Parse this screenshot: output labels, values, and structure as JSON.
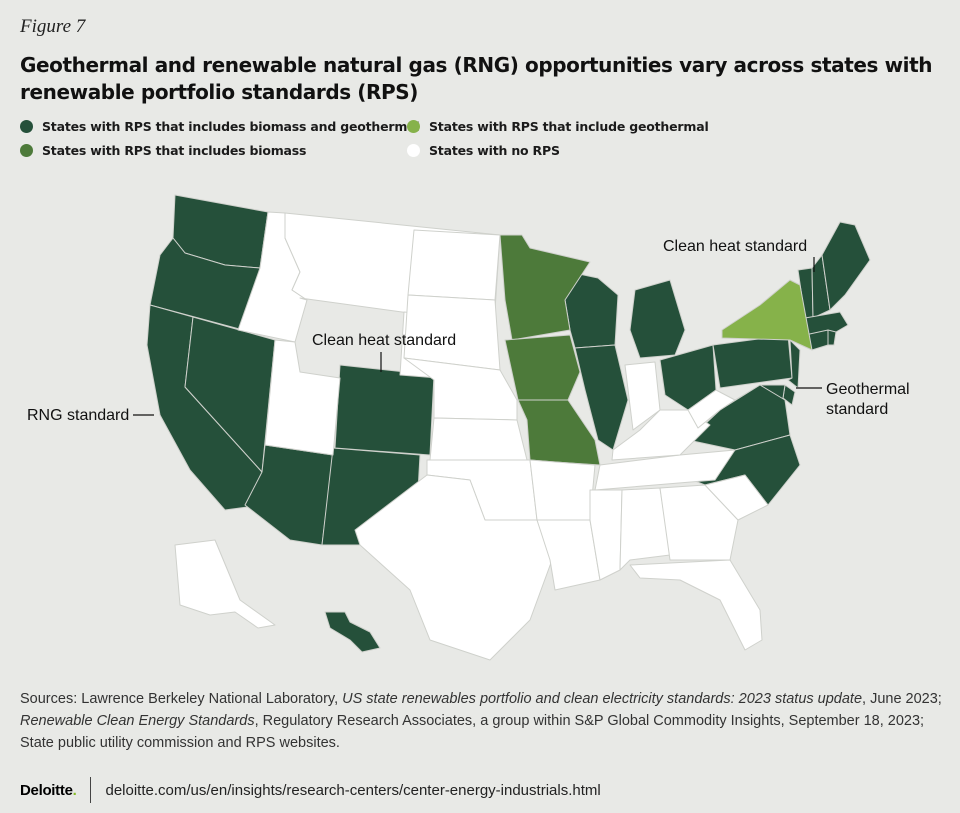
{
  "figure_label": "Figure 7",
  "title": "Geothermal and renewable natural gas (RNG) opportunities vary across states with renewable portfolio standards (RPS)",
  "colors": {
    "biomass_geothermal": "#25503a",
    "biomass": "#4d7a3a",
    "geothermal": "#86b24a",
    "no_rps": "#ffffff",
    "background": "#e8e9e6"
  },
  "legend": [
    {
      "key": "biomass_geothermal",
      "label": "States with RPS that includes biomass and geothermal"
    },
    {
      "key": "geothermal",
      "label": "States with RPS that include geothermal"
    },
    {
      "key": "biomass",
      "label": "States with RPS that includes biomass"
    },
    {
      "key": "no_rps",
      "label": "States with no RPS"
    }
  ],
  "map_data": {
    "type": "choropleth",
    "region": "United States",
    "categories": {
      "biomass_geothermal": [
        "WA",
        "OR",
        "CA",
        "NV",
        "AZ",
        "NM",
        "CO",
        "WI",
        "MI",
        "IL",
        "OH",
        "PA",
        "NJ",
        "DE",
        "MD",
        "VA",
        "NC",
        "VT",
        "NH",
        "ME",
        "MA",
        "RI",
        "CT",
        "HI"
      ],
      "biomass": [
        "MN",
        "IA",
        "MO"
      ],
      "geothermal": [
        "NY"
      ],
      "no_rps": [
        "ID",
        "MT",
        "WY",
        "UT",
        "ND",
        "SD",
        "NE",
        "KS",
        "OK",
        "TX",
        "AR",
        "LA",
        "MS",
        "AL",
        "GA",
        "FL",
        "SC",
        "TN",
        "KY",
        "WV",
        "IN",
        "AK"
      ]
    },
    "annotations": [
      {
        "state": "CA",
        "text": "RNG standard"
      },
      {
        "state": "CO",
        "text": "Clean heat standard"
      },
      {
        "state": "VT",
        "text": "Clean heat standard"
      },
      {
        "state": "MD",
        "text": "Geothermal standard"
      }
    ]
  },
  "annotations": {
    "rng": "RNG standard",
    "clean_heat_co": "Clean heat standard",
    "clean_heat_vt": "Clean heat standard",
    "geothermal_1": "Geothermal",
    "geothermal_2": "standard"
  },
  "sources": {
    "prefix": "Sources: Lawrence Berkeley National Laboratory, ",
    "doc1": "US state renewables portfolio and clean electricity standards: 2023 status update",
    "mid1": ", June 2023; ",
    "doc2": "Renewable Clean Energy Standards",
    "rest": ", Regulatory Research Associates, a group within S&P Global Commodity Insights, September 18, 2023; State public utility commission and RPS websites."
  },
  "footer": {
    "logo": "Deloitte",
    "logo_dot": ".",
    "url": "deloitte.com/us/en/insights/research-centers/center-energy-industrials.html"
  }
}
